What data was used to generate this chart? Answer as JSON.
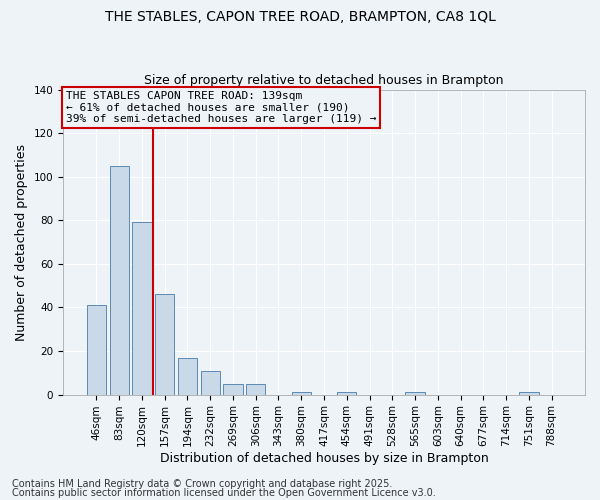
{
  "title1": "THE STABLES, CAPON TREE ROAD, BRAMPTON, CA8 1QL",
  "title2": "Size of property relative to detached houses in Brampton",
  "xlabel": "Distribution of detached houses by size in Brampton",
  "ylabel": "Number of detached properties",
  "categories": [
    "46sqm",
    "83sqm",
    "120sqm",
    "157sqm",
    "194sqm",
    "232sqm",
    "269sqm",
    "306sqm",
    "343sqm",
    "380sqm",
    "417sqm",
    "454sqm",
    "491sqm",
    "528sqm",
    "565sqm",
    "603sqm",
    "640sqm",
    "677sqm",
    "714sqm",
    "751sqm",
    "788sqm"
  ],
  "values": [
    41,
    105,
    79,
    46,
    17,
    11,
    5,
    5,
    0,
    1,
    0,
    1,
    0,
    0,
    1,
    0,
    0,
    0,
    0,
    1,
    0
  ],
  "bar_color": "#c9d9e8",
  "bar_edge_color": "#5a8ab5",
  "ylim": [
    0,
    140
  ],
  "yticks": [
    0,
    20,
    40,
    60,
    80,
    100,
    120,
    140
  ],
  "vline_x": 2.5,
  "vline_color": "#cc0000",
  "annotation_line1": "THE STABLES CAPON TREE ROAD: 139sqm",
  "annotation_line2": "← 61% of detached houses are smaller (190)",
  "annotation_line3": "39% of semi-detached houses are larger (119) →",
  "annotation_box_color": "#cc0000",
  "background_color": "#eef3f8",
  "footer1": "Contains HM Land Registry data © Crown copyright and database right 2025.",
  "footer2": "Contains public sector information licensed under the Open Government Licence v3.0.",
  "title_fontsize": 10,
  "subtitle_fontsize": 9,
  "tick_fontsize": 7.5,
  "label_fontsize": 9,
  "annotation_fontsize": 8,
  "footer_fontsize": 7
}
